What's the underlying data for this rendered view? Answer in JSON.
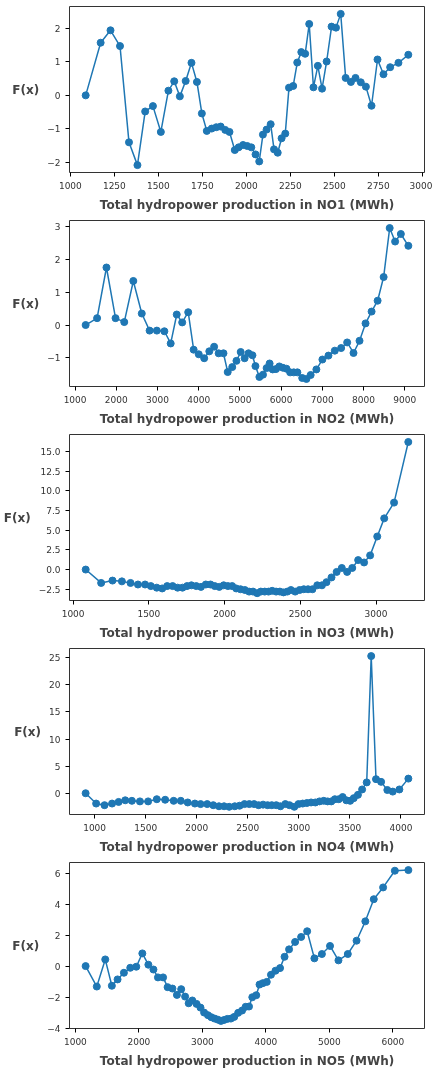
{
  "chart_data": [
    {
      "type": "line",
      "xlabel": "Total hydropower production in NO1 (MWh)",
      "ylabel": "F(x)",
      "marker": "circle",
      "line_style": "solid",
      "grid": false,
      "x": [
        1087,
        1172,
        1228,
        1282,
        1333,
        1381,
        1425,
        1469,
        1514,
        1557,
        1590,
        1622,
        1655,
        1688,
        1719,
        1747,
        1775,
        1803,
        1829,
        1854,
        1880,
        1904,
        1934,
        1956,
        1981,
        2005,
        2028,
        2052,
        2073,
        2094,
        2115,
        2138,
        2157,
        2178,
        2200,
        2221,
        2242,
        2266,
        2289,
        2312,
        2334,
        2357,
        2381,
        2406,
        2430,
        2456,
        2484,
        2509,
        2536,
        2564,
        2594,
        2620,
        2650,
        2679,
        2711,
        2745,
        2779,
        2817,
        2864,
        2920
      ],
      "series": [
        {
          "color": "#1f77b4",
          "values": [
            0,
            1.57,
            1.94,
            1.47,
            -1.4,
            -2.08,
            -0.48,
            -0.32,
            -1.09,
            0.14,
            0.42,
            -0.03,
            0.43,
            0.97,
            0.4,
            -0.54,
            -1.06,
            -0.99,
            -0.95,
            -0.93,
            -1.03,
            -1.09,
            -1.63,
            -1.55,
            -1.48,
            -1.51,
            -1.55,
            -1.76,
            -1.97,
            -1.17,
            -1.02,
            -0.86,
            -1.61,
            -1.71,
            -1.28,
            -1.14,
            0.23,
            0.28,
            0.98,
            1.29,
            1.24,
            2.13,
            0.24,
            0.88,
            0.2,
            1.01,
            2.05,
            2.02,
            2.43,
            0.52,
            0.4,
            0.52,
            0.39,
            0.26,
            -0.31,
            1.07,
            0.63,
            0.84,
            0.97,
            1.21
          ]
        }
      ],
      "xlim": [
        995,
        3012
      ],
      "ylim": [
        -2.3,
        2.65
      ],
      "xticks": [
        1000,
        1250,
        1500,
        1750,
        2000,
        2250,
        2500,
        2750,
        3000
      ],
      "yticks": [
        -2,
        -1,
        0,
        1,
        2
      ]
    },
    {
      "type": "line",
      "xlabel": "Total hydropower production in NO2 (MWh)",
      "ylabel": "F(x)",
      "marker": "circle",
      "line_style": "solid",
      "grid": false,
      "x": [
        1256,
        1534,
        1761,
        1981,
        2193,
        2413,
        2618,
        2808,
        2984,
        3167,
        3320,
        3467,
        3599,
        3745,
        3877,
        4001,
        4133,
        4257,
        4374,
        4484,
        4601,
        4704,
        4814,
        4916,
        5019,
        5114,
        5209,
        5304,
        5377,
        5473,
        5560,
        5648,
        5721,
        5795,
        5875,
        5956,
        6043,
        6131,
        6219,
        6307,
        6395,
        6512,
        6614,
        6717,
        6856,
        7002,
        7149,
        7303,
        7457,
        7603,
        7757,
        7903,
        8049,
        8196,
        8342,
        8488,
        8635,
        8767,
        8906,
        9088
      ],
      "series": [
        {
          "color": "#1f77b4",
          "values": [
            0,
            0.21,
            1.75,
            0.21,
            0.09,
            1.34,
            0.35,
            -0.17,
            -0.17,
            -0.19,
            -0.56,
            0.32,
            0.08,
            0.39,
            -0.75,
            -0.89,
            -1.01,
            -0.8,
            -0.66,
            -0.86,
            -0.86,
            -1.43,
            -1.28,
            -1.09,
            -0.82,
            -1.01,
            -0.86,
            -0.92,
            -1.25,
            -1.58,
            -1.51,
            -1.31,
            -1.17,
            -1.35,
            -1.34,
            -1.26,
            -1.3,
            -1.33,
            -1.44,
            -1.44,
            -1.44,
            -1.61,
            -1.64,
            -1.52,
            -1.35,
            -1.05,
            -0.93,
            -0.78,
            -0.7,
            -0.53,
            -0.85,
            -0.48,
            0.05,
            0.41,
            0.74,
            1.46,
            2.95,
            2.54,
            2.77,
            2.41
          ]
        }
      ],
      "xlim": [
        864,
        9480
      ],
      "ylim": [
        -1.87,
        3.18
      ],
      "xticks": [
        1000,
        2000,
        3000,
        4000,
        5000,
        6000,
        7000,
        8000,
        9000
      ],
      "yticks": [
        -1,
        0,
        1,
        2,
        3
      ]
    },
    {
      "type": "line",
      "xlabel": "Total hydropower production in NO3 (MWh)",
      "ylabel": "F(x)",
      "marker": "circle",
      "line_style": "solid",
      "grid": false,
      "x": [
        1083,
        1185,
        1260,
        1322,
        1379,
        1428,
        1475,
        1513,
        1552,
        1588,
        1621,
        1657,
        1690,
        1722,
        1752,
        1781,
        1813,
        1844,
        1876,
        1907,
        1935,
        1965,
        1994,
        2022,
        2050,
        2077,
        2105,
        2134,
        2162,
        2188,
        2215,
        2239,
        2265,
        2290,
        2314,
        2340,
        2365,
        2389,
        2414,
        2438,
        2466,
        2495,
        2523,
        2551,
        2580,
        2612,
        2643,
        2673,
        2706,
        2740,
        2774,
        2809,
        2843,
        2882,
        2921,
        2961,
        3008,
        3054,
        3119,
        3213
      ],
      "series": [
        {
          "color": "#1f77b4",
          "values": [
            0,
            -1.7,
            -1.4,
            -1.5,
            -1.7,
            -1.9,
            -1.9,
            -2.1,
            -2.3,
            -2.4,
            -2.1,
            -2.1,
            -2.3,
            -2.3,
            -2.1,
            -2.0,
            -2.1,
            -2.2,
            -1.9,
            -1.9,
            -2.1,
            -2.2,
            -2.0,
            -2.1,
            -2.1,
            -2.4,
            -2.5,
            -2.6,
            -2.8,
            -2.8,
            -3.0,
            -2.8,
            -2.8,
            -2.8,
            -2.7,
            -2.8,
            -2.8,
            -2.9,
            -2.8,
            -2.6,
            -2.8,
            -2.6,
            -2.5,
            -2.5,
            -2.5,
            -2.0,
            -2.0,
            -1.6,
            -1.0,
            -0.3,
            0.2,
            -0.3,
            0.2,
            1.2,
            0.9,
            1.8,
            4.2,
            6.5,
            8.5,
            16.2
          ]
        }
      ],
      "xlim": [
        976,
        3320
      ],
      "ylim": [
        -3.93,
        17.15
      ],
      "xticks": [
        1000,
        1500,
        2000,
        2500,
        3000
      ],
      "yticks": [
        {
          "value": -2.5,
          "label": "−2.5"
        },
        {
          "value": 0,
          "label": "0.0"
        },
        {
          "value": 2.5,
          "label": "2.5"
        },
        {
          "value": 5,
          "label": "5.0"
        },
        {
          "value": 7.5,
          "label": "7.5"
        },
        {
          "value": 10,
          "label": "10.0"
        },
        {
          "value": 12.5,
          "label": "12.5"
        },
        {
          "value": 15,
          "label": "15.0"
        }
      ]
    },
    {
      "type": "line",
      "xlabel": "Total hydropower production in NO4 (MWh)",
      "ylabel": "F(x)",
      "marker": "circle",
      "line_style": "solid",
      "grid": false,
      "x": [
        912,
        1015,
        1097,
        1171,
        1235,
        1300,
        1365,
        1444,
        1524,
        1609,
        1691,
        1774,
        1844,
        1912,
        1982,
        2038,
        2103,
        2162,
        2218,
        2268,
        2318,
        2373,
        2420,
        2468,
        2515,
        2562,
        2606,
        2650,
        2694,
        2735,
        2779,
        2820,
        2868,
        2909,
        2956,
        2997,
        3038,
        3079,
        3120,
        3162,
        3203,
        3244,
        3282,
        3318,
        3353,
        3391,
        3429,
        3465,
        3503,
        3538,
        3579,
        3620,
        3665,
        3709,
        3756,
        3806,
        3867,
        3920,
        3985,
        4073
      ],
      "series": [
        {
          "color": "#1f77b4",
          "values": [
            0,
            -1.9,
            -2.2,
            -1.9,
            -1.6,
            -1.3,
            -1.4,
            -1.5,
            -1.5,
            -1.1,
            -1.2,
            -1.4,
            -1.4,
            -1.7,
            -1.9,
            -2.0,
            -2.0,
            -2.2,
            -2.4,
            -2.4,
            -2.5,
            -2.4,
            -2.3,
            -2.0,
            -2.0,
            -2.0,
            -2.2,
            -2.1,
            -2.2,
            -2.2,
            -2.2,
            -2.4,
            -2.0,
            -2.2,
            -2.5,
            -2.0,
            -1.9,
            -1.8,
            -1.7,
            -1.7,
            -1.5,
            -1.4,
            -1.5,
            -1.5,
            -1.1,
            -1.1,
            -0.7,
            -1.3,
            -1.4,
            -0.9,
            -0.3,
            0.7,
            2.0,
            25.3,
            2.6,
            2.1,
            0.6,
            0.3,
            0.7,
            2.7
          ]
        }
      ],
      "xlim": [
        754,
        4231
      ],
      "ylim": [
        -3.92,
        26.7
      ],
      "xticks": [
        1000,
        1500,
        2000,
        2500,
        3000,
        3500,
        4000
      ],
      "yticks": [
        0,
        5,
        10,
        15,
        20,
        25
      ]
    },
    {
      "type": "line",
      "xlabel": "Total hydropower production in NO5 (MWh)",
      "ylabel": "F(x)",
      "marker": "circle",
      "line_style": "solid",
      "grid": false,
      "x": [
        1161,
        1337,
        1470,
        1574,
        1664,
        1764,
        1864,
        1959,
        2054,
        2149,
        2229,
        2300,
        2381,
        2452,
        2528,
        2599,
        2666,
        2728,
        2784,
        2841,
        2908,
        2970,
        3027,
        3088,
        3140,
        3193,
        3245,
        3292,
        3340,
        3392,
        3449,
        3501,
        3563,
        3625,
        3681,
        3734,
        3786,
        3848,
        3900,
        3952,
        4014,
        4080,
        4151,
        4223,
        4294,
        4365,
        4460,
        4555,
        4650,
        4764,
        4882,
        5010,
        5143,
        5290,
        5428,
        5566,
        5699,
        5846,
        6031,
        6244
      ],
      "series": [
        {
          "color": "#1f77b4",
          "values": [
            0,
            -1.32,
            0.43,
            -1.27,
            -0.86,
            -0.43,
            -0.11,
            -0.04,
            0.82,
            0.09,
            -0.22,
            -0.73,
            -0.73,
            -1.36,
            -1.45,
            -1.86,
            -1.49,
            -1.97,
            -2.4,
            -2.22,
            -2.44,
            -2.68,
            -3.0,
            -3.17,
            -3.3,
            -3.39,
            -3.46,
            -3.54,
            -3.48,
            -3.41,
            -3.39,
            -3.28,
            -3.02,
            -2.87,
            -2.63,
            -2.61,
            -2.01,
            -1.88,
            -1.19,
            -1.1,
            -1.02,
            -0.56,
            -0.3,
            -0.13,
            0.6,
            1.08,
            1.56,
            1.88,
            2.25,
            0.5,
            0.78,
            1.3,
            0.37,
            0.78,
            1.64,
            2.89,
            4.32,
            5.08,
            6.16,
            6.2
          ]
        }
      ],
      "xlim": [
        907,
        6498
      ],
      "ylim": [
        -4.03,
        6.69
      ],
      "xticks": [
        1000,
        2000,
        3000,
        4000,
        5000,
        6000
      ],
      "yticks": [
        -4,
        -2,
        0,
        2,
        4,
        6
      ]
    }
  ]
}
